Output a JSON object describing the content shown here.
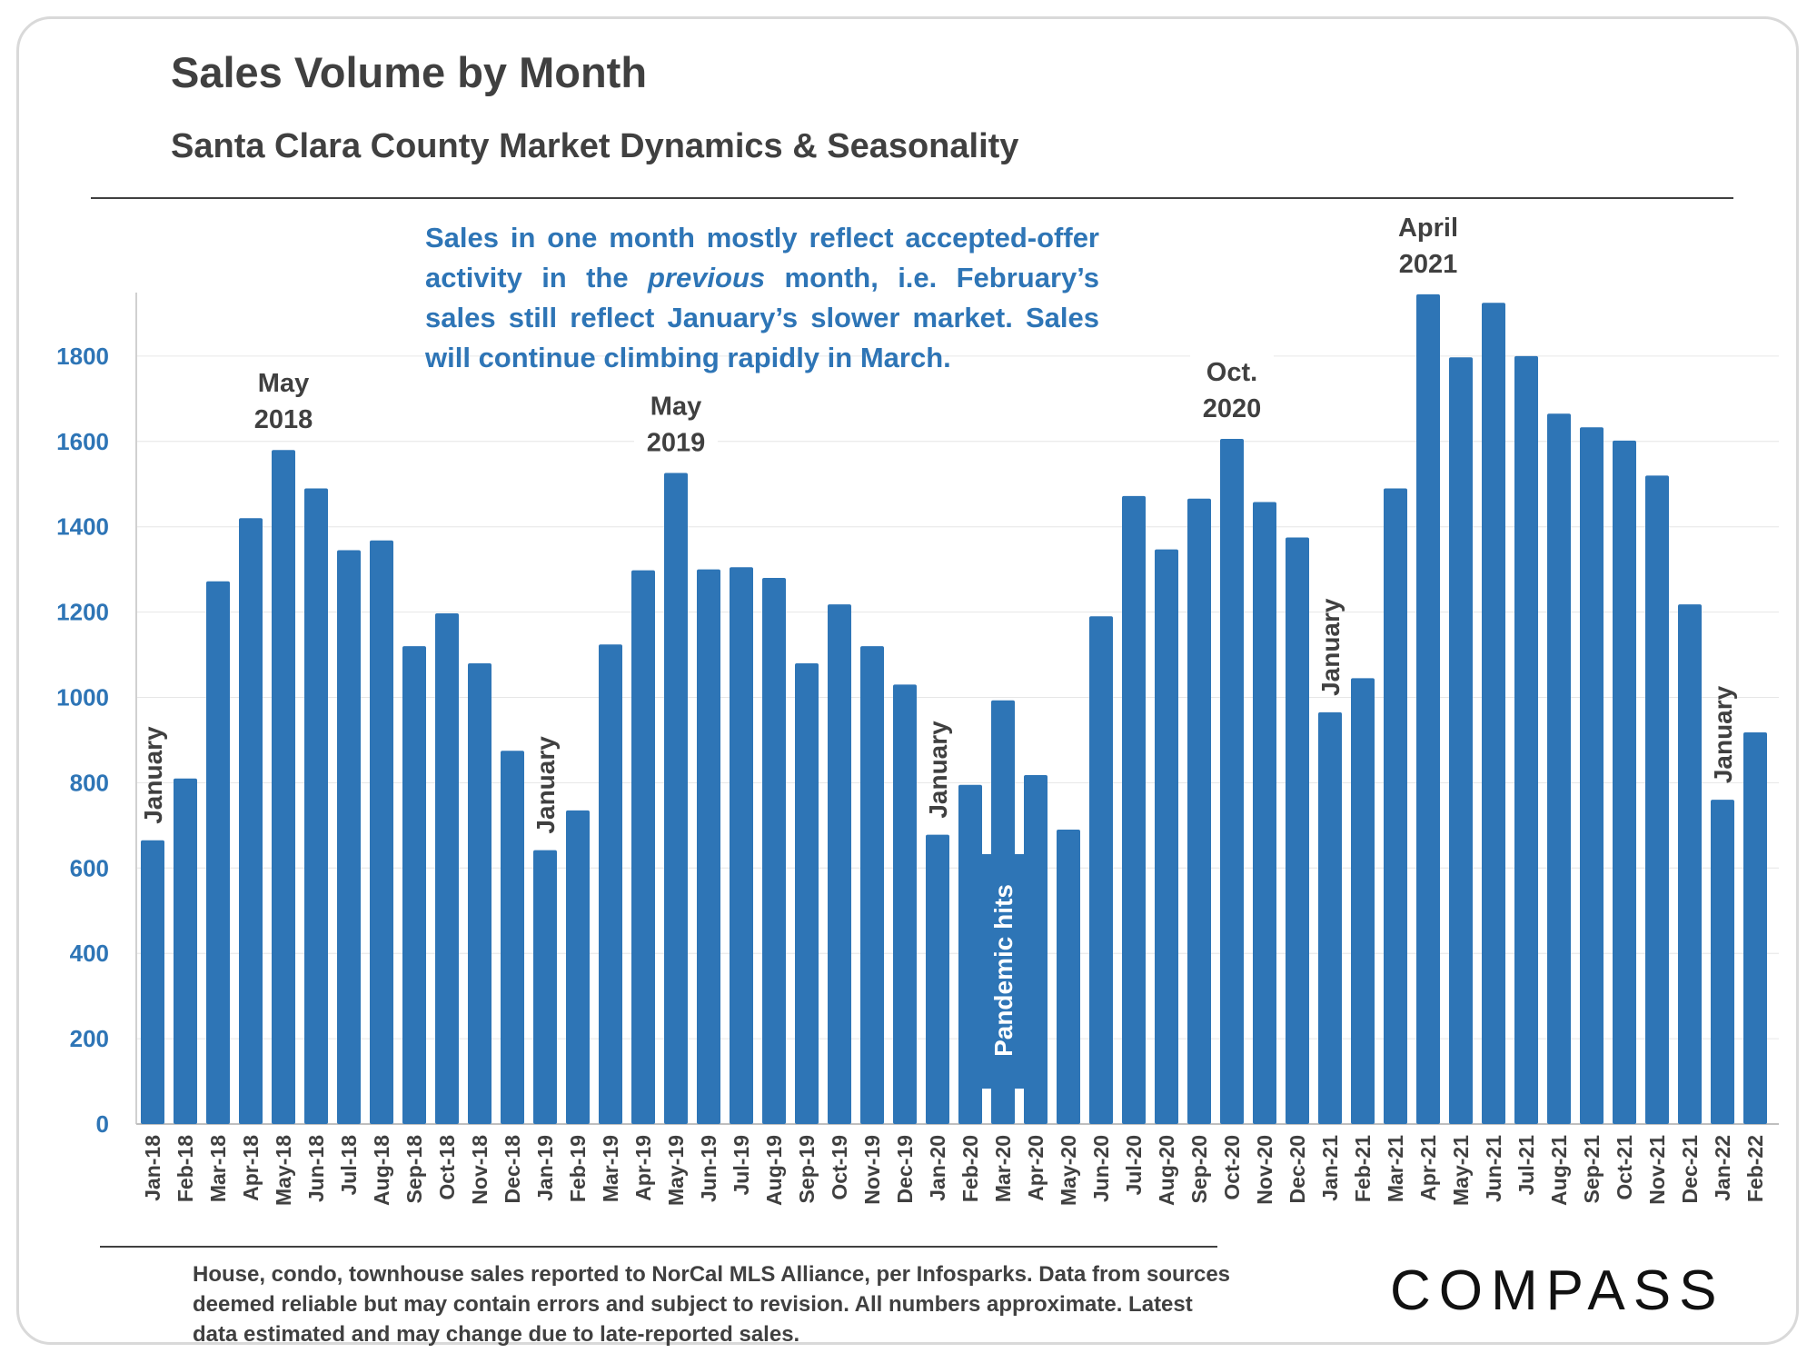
{
  "header": {
    "title": "Sales Volume by Month",
    "subtitle": "Santa Clara County Market Dynamics & Seasonality"
  },
  "note": {
    "line1": "Sales in one month mostly reflect accepted-offer",
    "line2_pre": "activity in the ",
    "line2_em": "previous",
    "line2_post": " month, i.e. February’s",
    "line3": "sales still reflect January’s slower market. Sales",
    "line4": "will continue climbing rapidly in March."
  },
  "footnote": {
    "line1": "House, condo, townhouse sales reported to NorCal MLS Alliance, per Infosparks. Data from sources",
    "line2": "deemed reliable but may contain errors and subject to revision. All numbers approximate. Latest",
    "line3": "data estimated and may change due to late-reported sales."
  },
  "logo": {
    "text": "COMPASS"
  },
  "colors": {
    "bar": "#2e75b6",
    "axis_text": "#2e75b6",
    "text": "#404040",
    "grid": "#e6e6e6"
  },
  "chart_data": {
    "type": "bar",
    "title": "Sales Volume by Month",
    "subtitle": "Santa Clara County Market Dynamics & Seasonality",
    "xlabel": "",
    "ylabel": "",
    "ylim": [
      0,
      1950
    ],
    "yticks": [
      0,
      200,
      400,
      600,
      800,
      1000,
      1200,
      1400,
      1600,
      1800
    ],
    "grid": true,
    "categories": [
      "Jan-18",
      "Feb-18",
      "Mar-18",
      "Apr-18",
      "May-18",
      "Jun-18",
      "Jul-18",
      "Aug-18",
      "Sep-18",
      "Oct-18",
      "Nov-18",
      "Dec-18",
      "Jan-19",
      "Feb-19",
      "Mar-19",
      "Apr-19",
      "May-19",
      "Jun-19",
      "Jul-19",
      "Aug-19",
      "Sep-19",
      "Oct-19",
      "Nov-19",
      "Dec-19",
      "Jan-20",
      "Feb-20",
      "Mar-20",
      "Apr-20",
      "May-20",
      "Jun-20",
      "Jul-20",
      "Aug-20",
      "Sep-20",
      "Oct-20",
      "Nov-20",
      "Dec-20",
      "Jan-21",
      "Feb-21",
      "Mar-21",
      "Apr-21",
      "May-21",
      "Jun-21",
      "Jul-21",
      "Aug-21",
      "Sep-21",
      "Oct-21",
      "Nov-21",
      "Dec-21",
      "Jan-22",
      "Feb-22"
    ],
    "values": [
      665,
      810,
      1272,
      1420,
      1580,
      1490,
      1345,
      1368,
      1120,
      1197,
      1080,
      875,
      642,
      735,
      1124,
      1298,
      1526,
      1300,
      1305,
      1280,
      1080,
      1218,
      1120,
      1030,
      678,
      795,
      993,
      818,
      690,
      1190,
      1472,
      1347,
      1466,
      1606,
      1458,
      1375,
      965,
      1045,
      1490,
      1945,
      1797,
      1925,
      1800,
      1665,
      1633,
      1602,
      1520,
      1218,
      760,
      918
    ],
    "annotations": [
      {
        "id": "jan18",
        "text": "January",
        "index": 0,
        "rotated": true
      },
      {
        "id": "may18",
        "text": "May",
        "text2": "2018",
        "index": 4,
        "rotated": false
      },
      {
        "id": "jan19",
        "text": "January",
        "index": 12,
        "rotated": true
      },
      {
        "id": "may19",
        "text": "May",
        "text2": "2019",
        "index": 16,
        "rotated": false
      },
      {
        "id": "jan20",
        "text": "January",
        "index": 24,
        "rotated": true
      },
      {
        "id": "pandemic",
        "text": "Pandemic hits",
        "index": 26,
        "rotated": true,
        "inside": true
      },
      {
        "id": "oct20",
        "text": "Oct.",
        "text2": "2020",
        "index": 33,
        "rotated": false
      },
      {
        "id": "jan21",
        "text": "January",
        "index": 36,
        "rotated": true
      },
      {
        "id": "apr21",
        "text": "April",
        "text2": "2021",
        "index": 39,
        "rotated": false
      },
      {
        "id": "jan22",
        "text": "January",
        "index": 48,
        "rotated": true
      }
    ]
  }
}
